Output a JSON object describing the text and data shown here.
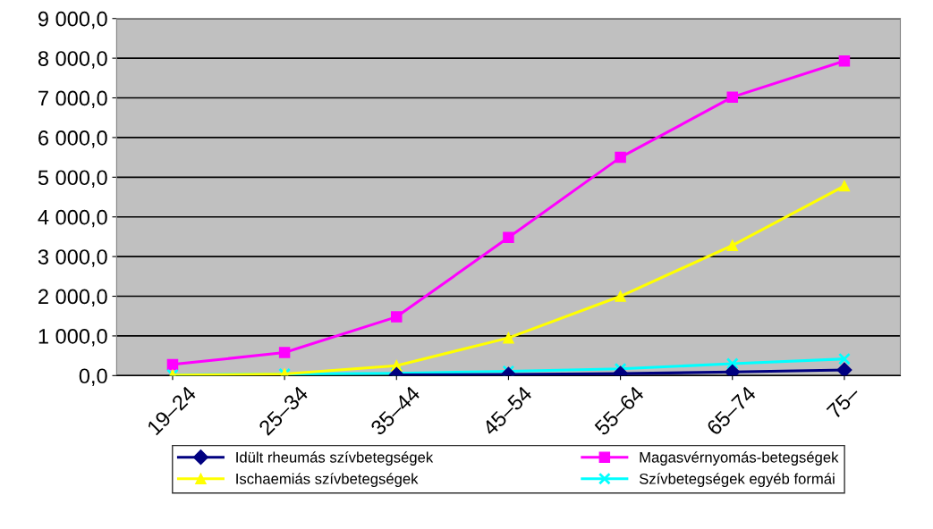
{
  "chart_data": {
    "type": "line",
    "categories": [
      "19–24",
      "25–34",
      "35–44",
      "45–54",
      "55–64",
      "65–74",
      "75–"
    ],
    "series": [
      {
        "name": "Idült rheumás szívbetegségek",
        "color": "#000080",
        "marker": "diamond",
        "values": [
          null,
          null,
          20,
          30,
          50,
          90,
          140
        ]
      },
      {
        "name": "Magasvérnyomás-betegségek",
        "color": "#ff00ff",
        "marker": "square",
        "values": [
          280,
          580,
          1480,
          3480,
          5500,
          7020,
          7930
        ]
      },
      {
        "name": "Ischaemiás szívbetegségek",
        "color": "#ffff00",
        "marker": "triangle",
        "values": [
          10,
          40,
          250,
          950,
          2000,
          3280,
          4780
        ]
      },
      {
        "name": "Szívbetegségek egyéb formái",
        "color": "#00ffff",
        "marker": "cross",
        "values": [
          20,
          40,
          60,
          110,
          170,
          300,
          420
        ]
      }
    ],
    "ylim": [
      0,
      9000
    ],
    "yticks": [
      {
        "value": 0,
        "label": "0,0"
      },
      {
        "value": 1000,
        "label": "1 000,0"
      },
      {
        "value": 2000,
        "label": "2 000,0"
      },
      {
        "value": 3000,
        "label": "3 000,0"
      },
      {
        "value": 4000,
        "label": "4 000,0"
      },
      {
        "value": 5000,
        "label": "5 000,0"
      },
      {
        "value": 6000,
        "label": "6 000,0"
      },
      {
        "value": 7000,
        "label": "7 000,0"
      },
      {
        "value": 8000,
        "label": "8 000,0"
      },
      {
        "value": 9000,
        "label": "9 000,0"
      }
    ],
    "grid": "y",
    "legend": "bottom"
  }
}
